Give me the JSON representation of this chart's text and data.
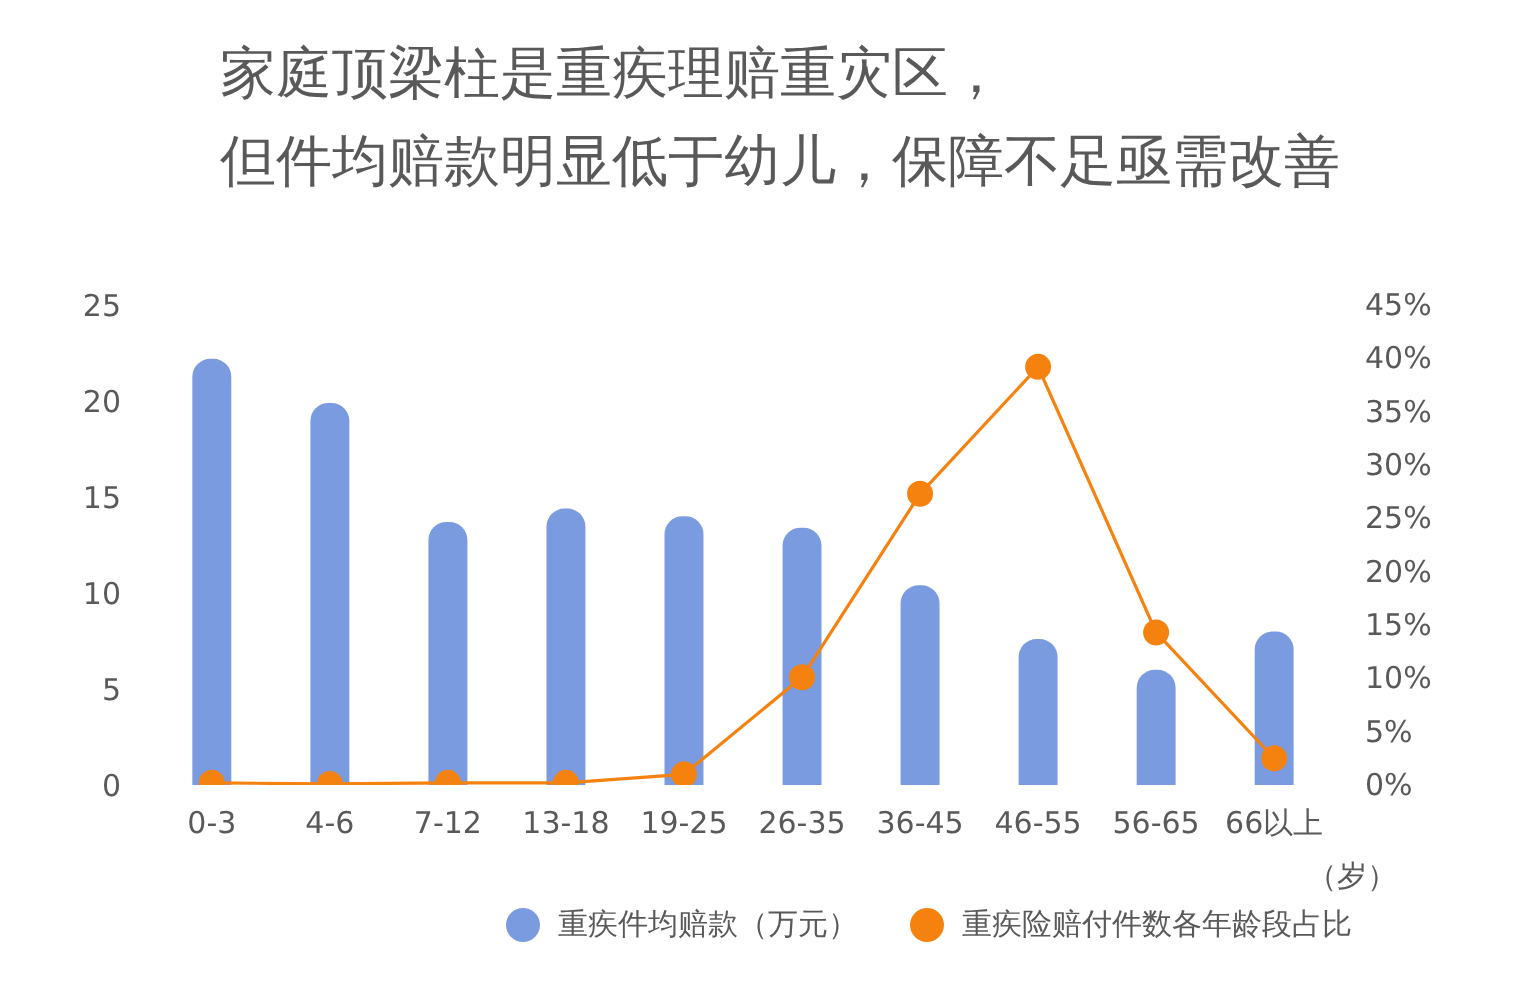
{
  "chart_data": {
    "type": "bar",
    "title": "家庭顶梁柱是重疾理赔重灾区，",
    "subtitle": "但件均赔款明显低于幼儿，保障不足亟需改善",
    "xlabel": "（岁）",
    "categories": [
      "0-3",
      "4-6",
      "7-12",
      "13-18",
      "19-25",
      "26-35",
      "36-45",
      "46-55",
      "56-65",
      "66以上"
    ],
    "series": [
      {
        "name": "重疾件均赔款（万元）",
        "color": "#7b9be0",
        "values": [
          22.2,
          19.9,
          13.7,
          14.4,
          14.0,
          13.4,
          10.4,
          7.6,
          6.0,
          8.0
        ]
      },
      {
        "name": "重疾险赔付件数各年龄段占比",
        "type": "line",
        "axis": "y2",
        "color": "#f5820f",
        "values": [
          0.2,
          0.1,
          0.2,
          0.2,
          1.0,
          10.1,
          27.3,
          39.2,
          14.3,
          2.5
        ]
      }
    ],
    "ylim": [
      0,
      25
    ],
    "yticks": [
      0,
      5,
      10,
      15,
      20,
      25
    ],
    "y2lim": [
      0,
      45
    ],
    "y2ticks": [
      {
        "value": 0,
        "label": "0%"
      },
      {
        "value": 5,
        "label": "5%"
      },
      {
        "value": 10,
        "label": "10%"
      },
      {
        "value": 15,
        "label": "15%"
      },
      {
        "value": 20,
        "label": "20%"
      },
      {
        "value": 25,
        "label": "25%"
      },
      {
        "value": 30,
        "label": "30%"
      },
      {
        "value": 35,
        "label": "35%"
      },
      {
        "value": 40,
        "label": "40%"
      },
      {
        "value": 45,
        "label": "45%"
      }
    ],
    "grid": false,
    "legend": "bottom",
    "marker": "circle"
  }
}
